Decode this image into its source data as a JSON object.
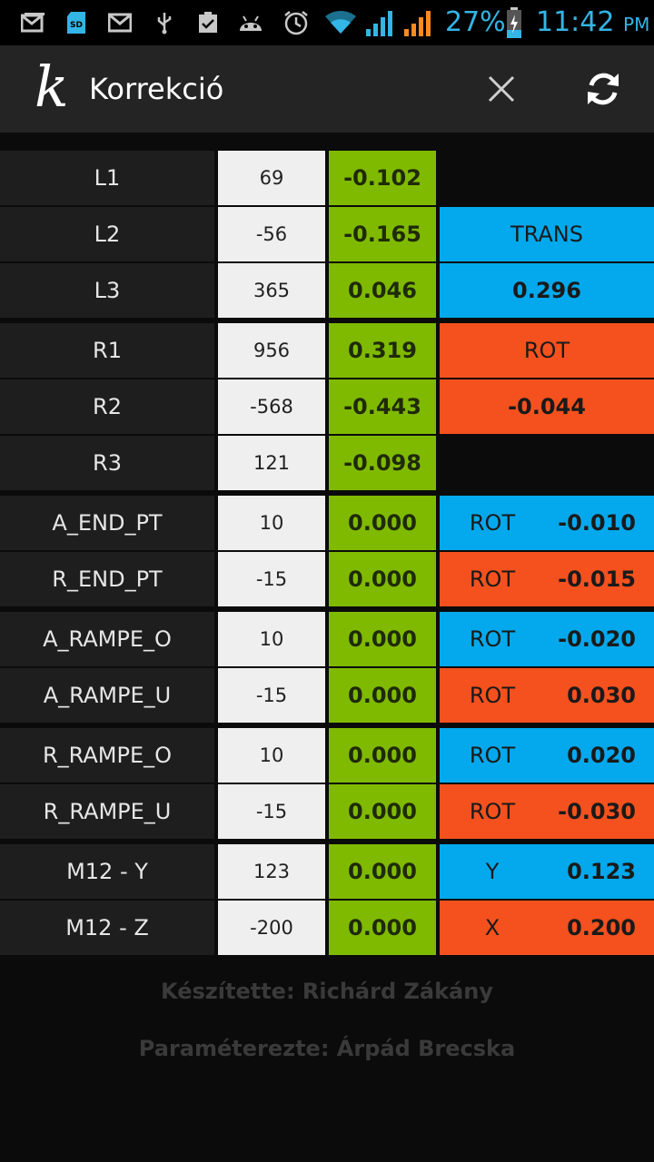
{
  "status_bar": {
    "battery": "27%",
    "time": "11:42",
    "ampm": "PM",
    "icons": [
      "gmail-icon",
      "sd-card-icon",
      "gmail-icon",
      "usb-icon",
      "clipboard-check-icon",
      "android-debug-icon",
      "alarm-icon",
      "wifi-icon",
      "signal-icon",
      "signal-icon",
      "battery-charging-icon"
    ]
  },
  "app_bar": {
    "logo": "k",
    "title": "Korrekció"
  },
  "colors": {
    "label_bg": "#1e1e1e",
    "value_bg": "#efefef",
    "correction_bg": "#7fba00",
    "trans_blue": "#03a9ec",
    "rot_orange": "#f4511e",
    "status_blue": "#33b5e5"
  },
  "rows": [
    {
      "label": "L1",
      "value": "69",
      "correction": "-0.102",
      "extra": null
    },
    {
      "label": "L2",
      "value": "-56",
      "correction": "-0.165",
      "extra": {
        "text": "TRANS",
        "color": "blue"
      }
    },
    {
      "label": "L3",
      "value": "365",
      "correction": "0.046",
      "extra": {
        "text": "0.296",
        "color": "blue",
        "bold": true
      }
    },
    {
      "label": "R1",
      "value": "956",
      "correction": "0.319",
      "extra": {
        "text": "ROT",
        "color": "orange"
      }
    },
    {
      "label": "R2",
      "value": "-568",
      "correction": "-0.443",
      "extra": {
        "text": "-0.044",
        "color": "orange",
        "bold": true
      }
    },
    {
      "label": "R3",
      "value": "121",
      "correction": "-0.098",
      "extra": null
    },
    {
      "label": "A_END_PT",
      "value": "10",
      "correction": "0.000",
      "extra": {
        "key": "ROT",
        "val": "-0.010",
        "color": "blue"
      }
    },
    {
      "label": "R_END_PT",
      "value": "-15",
      "correction": "0.000",
      "extra": {
        "key": "ROT",
        "val": "-0.015",
        "color": "orange"
      }
    },
    {
      "label": "A_RAMPE_O",
      "value": "10",
      "correction": "0.000",
      "extra": {
        "key": "ROT",
        "val": "-0.020",
        "color": "blue"
      }
    },
    {
      "label": "A_RAMPE_U",
      "value": "-15",
      "correction": "0.000",
      "extra": {
        "key": "ROT",
        "val": "0.030",
        "color": "orange"
      }
    },
    {
      "label": "R_RAMPE_O",
      "value": "10",
      "correction": "0.000",
      "extra": {
        "key": "ROT",
        "val": "0.020",
        "color": "blue"
      }
    },
    {
      "label": "R_RAMPE_U",
      "value": "-15",
      "correction": "0.000",
      "extra": {
        "key": "ROT",
        "val": "-0.030",
        "color": "orange"
      }
    },
    {
      "label": "M12 - Y",
      "value": "123",
      "correction": "0.000",
      "extra": {
        "key": "Y",
        "val": "0.123",
        "color": "blue"
      }
    },
    {
      "label": "M12 - Z",
      "value": "-200",
      "correction": "0.000",
      "extra": {
        "key": "X",
        "val": "0.200",
        "color": "orange"
      }
    }
  ],
  "footer": {
    "author": "Készítette: Richárd Zákány",
    "parameters": "Paraméterezte: Árpád Brecska"
  }
}
